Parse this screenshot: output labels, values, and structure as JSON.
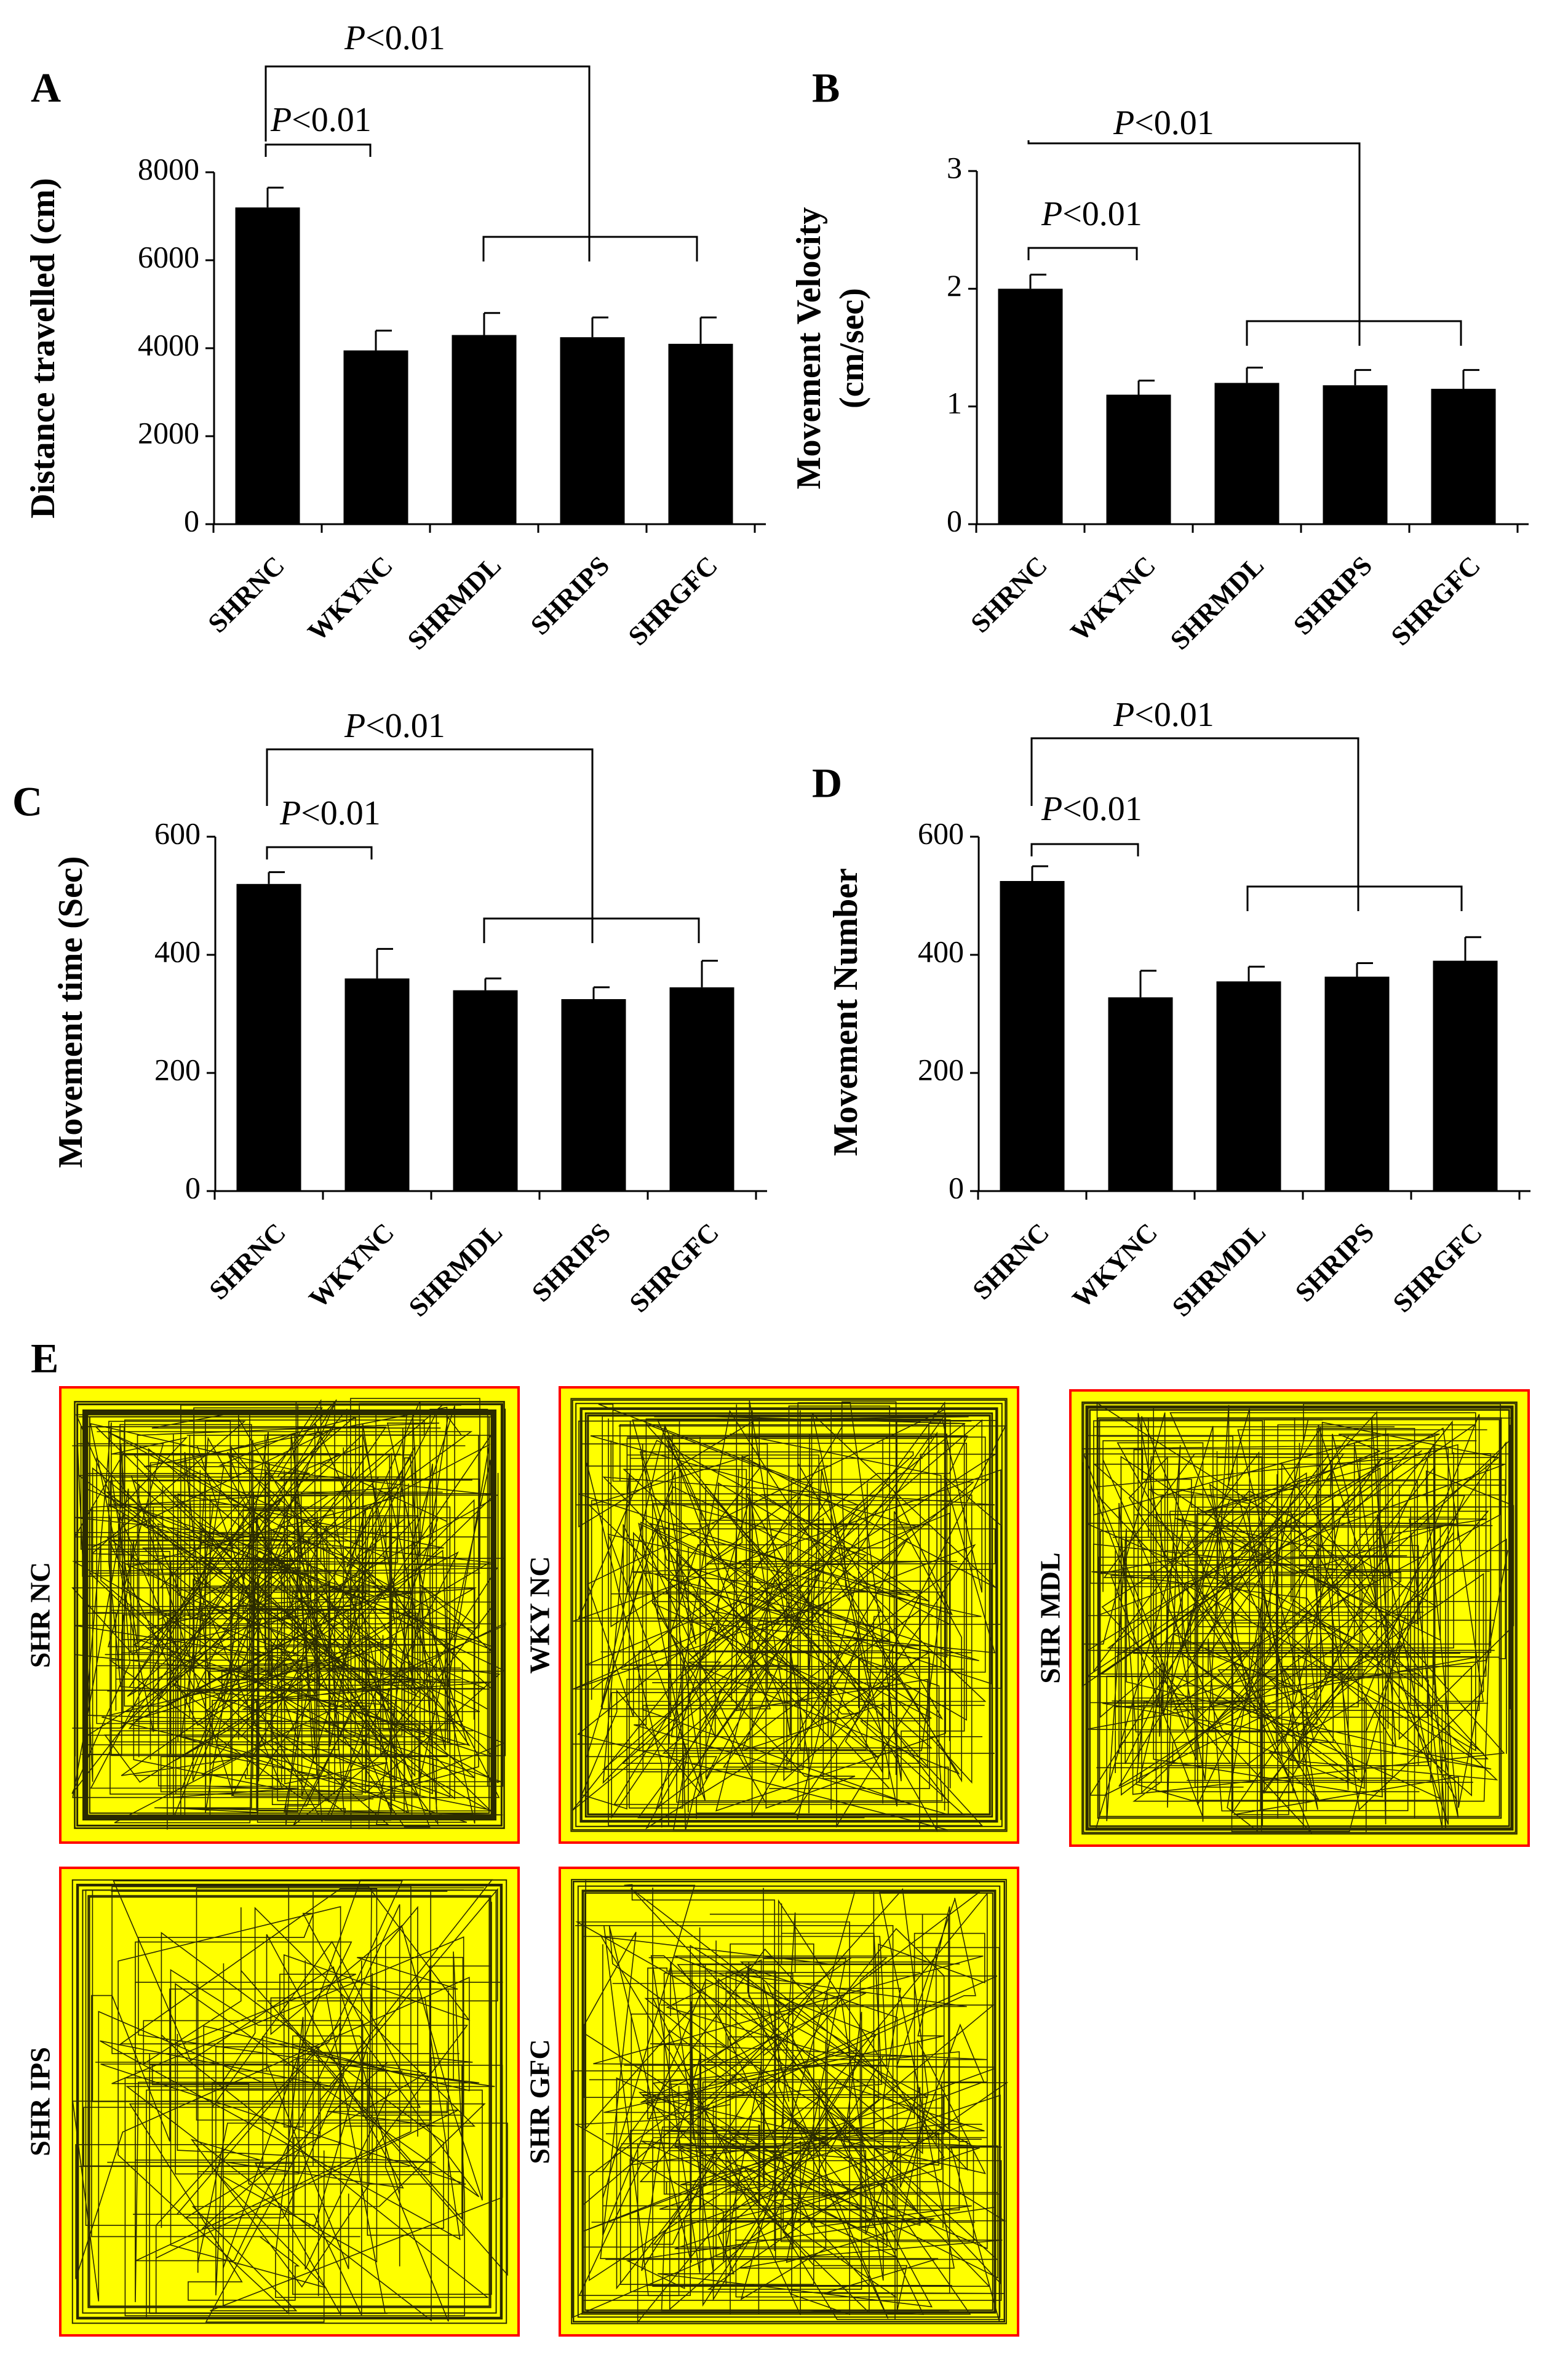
{
  "chart_data": [
    {
      "panel_letter": "A",
      "type": "bar",
      "categories": [
        "SHRNC",
        "WKYNC",
        "SHRMDL",
        "SHRIPS",
        "SHRGFC"
      ],
      "values": [
        7200,
        3950,
        4300,
        4250,
        4100
      ],
      "errors": [
        450,
        450,
        500,
        450,
        600
      ],
      "ylabel": "Distance travelled (cm)",
      "yticks": [
        "0",
        "2000",
        "4000",
        "6000",
        "8000"
      ],
      "ylim": [
        0,
        8000
      ],
      "annotations": [
        {
          "text_italic": "P",
          "text": "<0.01",
          "between": [
            "SHRNC",
            "WKYNC"
          ]
        },
        {
          "text_italic": "P",
          "text": "<0.01",
          "between": [
            "SHRNC",
            "SHRMDL, SHRIPS, SHRGFC"
          ]
        }
      ]
    },
    {
      "panel_letter": "B",
      "type": "bar",
      "categories": [
        "SHRNC",
        "WKYNC",
        "SHRMDL",
        "SHRIPS",
        "SHRGFC"
      ],
      "values": [
        2.0,
        1.1,
        1.2,
        1.18,
        1.15
      ],
      "errors": [
        0.12,
        0.12,
        0.13,
        0.13,
        0.16
      ],
      "ylabel": "Movement Velocity (cm/sec)",
      "ylabel_lines": [
        "Movement Velocity",
        "(cm/sec)"
      ],
      "yticks": [
        "0",
        "1",
        "2",
        "3"
      ],
      "ylim": [
        0,
        3
      ],
      "annotations": [
        {
          "text_italic": "P",
          "text": "<0.01",
          "between": [
            "SHRNC",
            "WKYNC"
          ]
        },
        {
          "text_italic": "P",
          "text": "<0.01",
          "between": [
            "SHRNC",
            "SHRMDL, SHRIPS, SHRGFC"
          ]
        }
      ]
    },
    {
      "panel_letter": "C",
      "type": "bar",
      "categories": [
        "SHRNC",
        "WKYNC",
        "SHRMDL",
        "SHRIPS",
        "SHRGFC"
      ],
      "values": [
        520,
        360,
        340,
        325,
        345
      ],
      "errors": [
        20,
        50,
        20,
        20,
        45
      ],
      "ylabel": "Movement time (Sec)",
      "yticks": [
        "0",
        "200",
        "400",
        "600"
      ],
      "ylim": [
        0,
        600
      ],
      "annotations": [
        {
          "text_italic": "P",
          "text": "<0.01",
          "between": [
            "SHRNC",
            "WKYNC"
          ]
        },
        {
          "text_italic": "P",
          "text": "<0.01",
          "between": [
            "SHRNC",
            "SHRMDL, SHRIPS, SHRGFC"
          ]
        }
      ]
    },
    {
      "panel_letter": "D",
      "type": "bar",
      "categories": [
        "SHRNC",
        "WKYNC",
        "SHRMDL",
        "SHRIPS",
        "SHRGFC"
      ],
      "values": [
        525,
        328,
        355,
        363,
        390
      ],
      "errors": [
        25,
        45,
        25,
        23,
        40
      ],
      "ylabel": "Movement Number",
      "yticks": [
        "0",
        "200",
        "400",
        "600"
      ],
      "ylim": [
        0,
        600
      ],
      "annotations": [
        {
          "text_italic": "P",
          "text": "<0.01",
          "between": [
            "SHRNC",
            "WKYNC"
          ]
        },
        {
          "text_italic": "P",
          "text": "<0.01",
          "between": [
            "SHRNC",
            "SHRMDL, SHRIPS, SHRGFC"
          ]
        }
      ]
    }
  ],
  "panel_e": {
    "letter": "E",
    "fill_color": "#ffff00",
    "border_color": "#ff0000",
    "trace_color": "#2a2a00",
    "tracks": [
      {
        "label": "SHR NC",
        "density": 1.0
      },
      {
        "label": "WKY NC",
        "density": 0.55
      },
      {
        "label": "SHR MDL",
        "density": 0.7
      },
      {
        "label": "SHR IPS",
        "density": 0.3
      },
      {
        "label": "SHR GFC",
        "density": 0.5
      }
    ]
  }
}
